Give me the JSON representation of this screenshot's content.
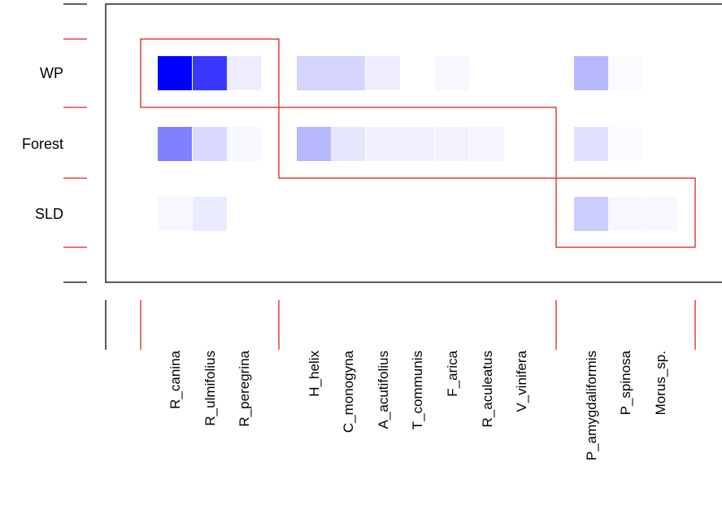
{
  "chart_data": {
    "type": "heatmap",
    "title": "",
    "xlabel": "",
    "ylabel": "",
    "rows": [
      "WP",
      "Forest",
      "SLD"
    ],
    "columns": [
      "R_canina",
      "R_ulmifolius",
      "R_peregrina",
      "H_helix",
      "C_monogyna",
      "A_acutifolius",
      "T_communis",
      "F_arica",
      "R_aculeatus",
      "V_vinifera",
      "P_amygdaliformis",
      "P_spinosa",
      "Morus_sp."
    ],
    "values": [
      [
        1.0,
        0.78,
        0.07,
        0.17,
        0.17,
        0.07,
        0.0,
        0.03,
        0.0,
        0.0,
        0.28,
        0.02,
        0.0
      ],
      [
        0.5,
        0.15,
        0.03,
        0.28,
        0.1,
        0.06,
        0.06,
        0.05,
        0.04,
        0.0,
        0.12,
        0.02,
        0.0
      ],
      [
        0.03,
        0.08,
        0.0,
        0.0,
        0.0,
        0.0,
        0.0,
        0.0,
        0.0,
        0.0,
        0.2,
        0.03,
        0.03
      ]
    ],
    "color_scale": {
      "low": "#ffffff",
      "high": "#0000ff"
    },
    "modules": [
      {
        "rows": [
          "WP"
        ],
        "columns": [
          "R_canina",
          "R_ulmifolius",
          "R_peregrina"
        ]
      },
      {
        "rows": [
          "Forest"
        ],
        "columns": [
          "H_helix",
          "C_monogyna",
          "A_acutifolius",
          "T_communis",
          "F_arica",
          "R_aculeatus",
          "V_vinifera"
        ]
      },
      {
        "rows": [
          "SLD"
        ],
        "columns": [
          "P_amygdaliformis",
          "P_spinosa",
          "Morus_sp."
        ]
      }
    ],
    "module_color": "#e02020",
    "frame_color": "#000000",
    "grid": false,
    "legend": "none"
  }
}
